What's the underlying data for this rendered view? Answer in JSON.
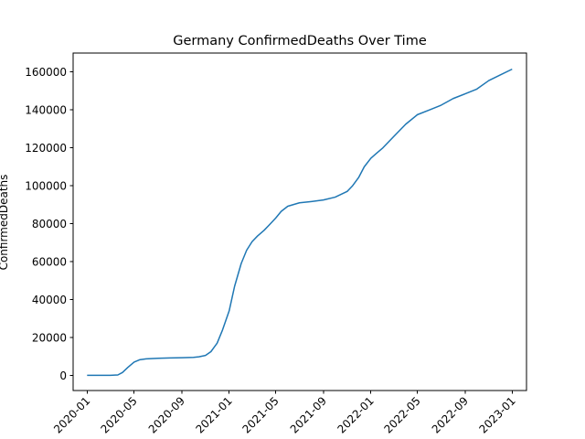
{
  "chart_data": {
    "type": "line",
    "title": "Germany  ConfirmedDeaths Over Time",
    "xlabel": "",
    "ylabel": "ConfirmedDeaths",
    "grid": false,
    "legend": "none",
    "xlim": [
      "2019-11-26",
      "2023-02-06"
    ],
    "ylim": [
      -8000,
      170000
    ],
    "x_ticks": [
      "2020-01",
      "2020-05",
      "2020-09",
      "2021-01",
      "2021-05",
      "2021-09",
      "2022-01",
      "2022-05",
      "2022-09",
      "2023-01"
    ],
    "y_ticks": [
      0,
      20000,
      40000,
      60000,
      80000,
      100000,
      120000,
      140000,
      160000
    ],
    "series": [
      {
        "color": "#1f77b4",
        "x": [
          "2020-01-01",
          "2020-03-01",
          "2020-03-20",
          "2020-04-01",
          "2020-04-15",
          "2020-05-01",
          "2020-05-15",
          "2020-06-01",
          "2020-07-01",
          "2020-08-01",
          "2020-09-01",
          "2020-10-01",
          "2020-10-15",
          "2020-11-01",
          "2020-11-15",
          "2020-12-01",
          "2020-12-15",
          "2021-01-01",
          "2021-01-15",
          "2021-02-01",
          "2021-02-15",
          "2021-03-01",
          "2021-03-15",
          "2021-04-01",
          "2021-04-15",
          "2021-05-01",
          "2021-05-15",
          "2021-06-01",
          "2021-07-01",
          "2021-08-01",
          "2021-09-01",
          "2021-10-01",
          "2021-11-01",
          "2021-11-15",
          "2021-12-01",
          "2021-12-15",
          "2022-01-01",
          "2022-01-15",
          "2022-02-01",
          "2022-03-01",
          "2022-04-01",
          "2022-05-01",
          "2022-06-01",
          "2022-07-01",
          "2022-08-01",
          "2022-09-01",
          "2022-10-01",
          "2022-11-01",
          "2022-12-01",
          "2022-12-31"
        ],
        "y": [
          0,
          0,
          200,
          1500,
          4200,
          7000,
          8200,
          8700,
          9000,
          9200,
          9300,
          9500,
          9800,
          10500,
          12500,
          17000,
          24000,
          34000,
          47000,
          59000,
          66000,
          70500,
          73500,
          76500,
          79500,
          83000,
          86500,
          89200,
          91000,
          91700,
          92500,
          94000,
          97000,
          100000,
          104500,
          110000,
          114500,
          117000,
          120000,
          126000,
          132500,
          137500,
          140000,
          142500,
          146000,
          148500,
          151000,
          155500,
          158500,
          161500
        ]
      }
    ]
  }
}
